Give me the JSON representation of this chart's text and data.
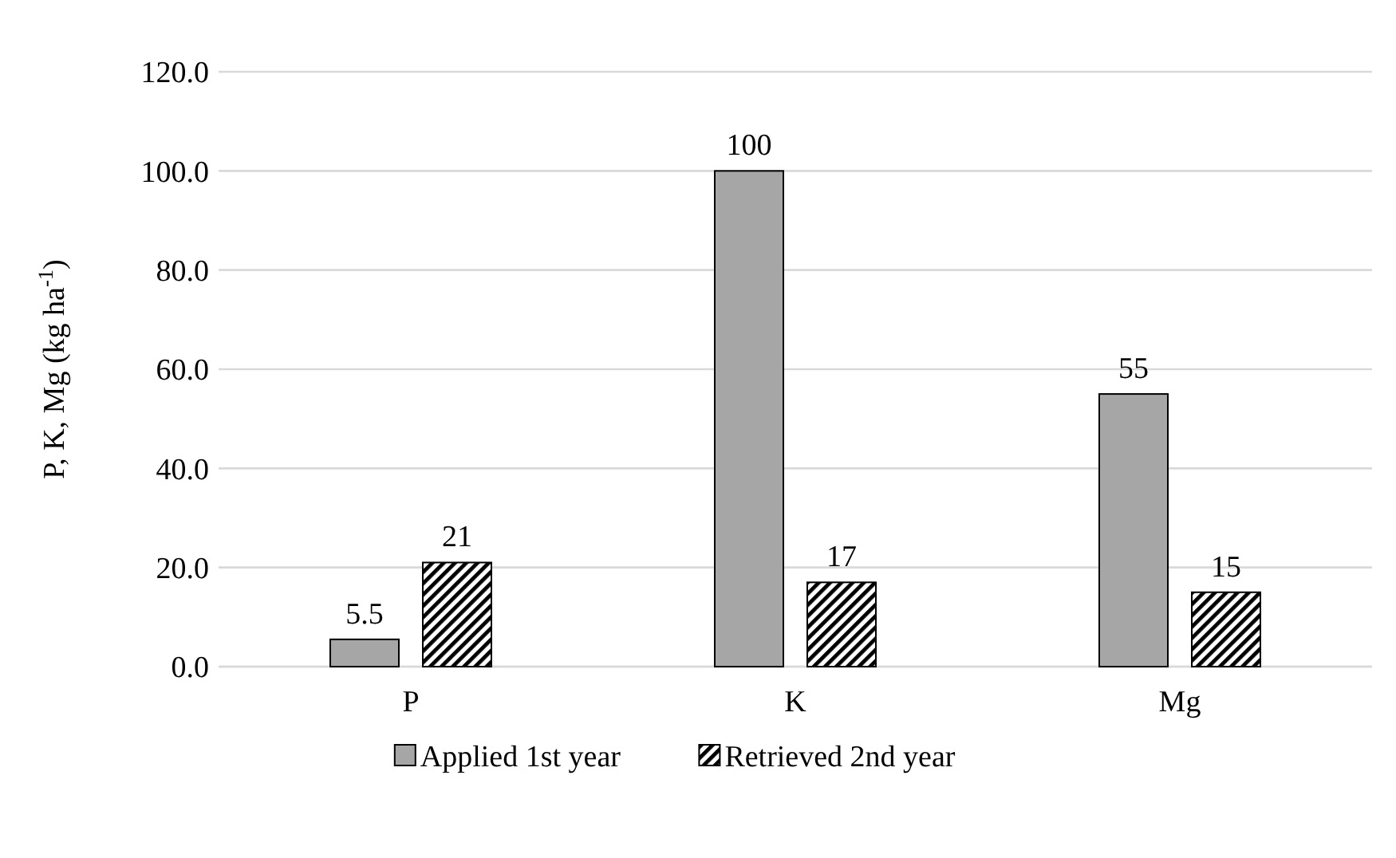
{
  "chart_data": {
    "type": "bar",
    "ylabel": "P, K, Mg (kg ha$^{-1}$)",
    "categories": [
      "P",
      "K",
      "Mg"
    ],
    "series": [
      {
        "name": "Applied 1st year",
        "color": "#a6a6a6",
        "values": [
          5.5,
          100,
          55
        ]
      },
      {
        "name": "Retrieved 2nd year",
        "color": "#000000",
        "values": [
          21,
          17,
          15
        ]
      }
    ],
    "ylim": [
      0,
      120
    ],
    "yticks": [
      {
        "value": 0,
        "label": "0.0"
      },
      {
        "value": 20,
        "label": "20.0"
      },
      {
        "value": 40,
        "label": "40.0"
      },
      {
        "value": 60,
        "label": "60.0"
      },
      {
        "value": 80,
        "label": "80.0"
      },
      {
        "value": 100,
        "label": "100.0"
      },
      {
        "value": 120,
        "label": "120.0"
      }
    ],
    "grid": "y",
    "legend": "bottom",
    "data_labels": true
  }
}
